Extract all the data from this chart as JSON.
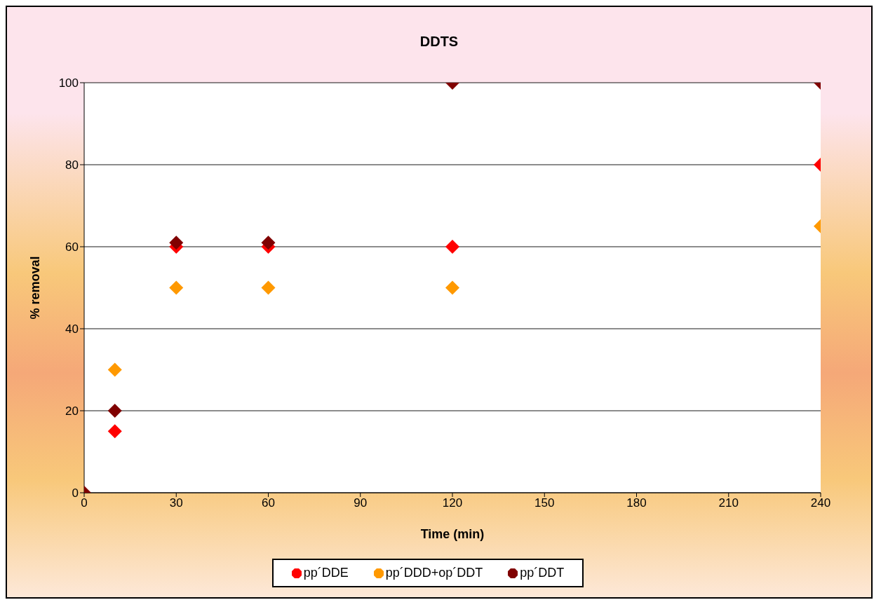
{
  "chart_data": {
    "type": "scatter",
    "title": "DDTS",
    "xlabel": "Time (min)",
    "ylabel": "% removal",
    "x": [
      0,
      10,
      30,
      60,
      120,
      240
    ],
    "series": [
      {
        "name": "pp´DDE",
        "color": "#ff0000",
        "values": [
          null,
          15,
          60,
          60,
          60,
          80
        ]
      },
      {
        "name": "pp´DDD+op´DDT",
        "color": "#ff9900",
        "values": [
          null,
          30,
          50,
          50,
          50,
          65
        ]
      },
      {
        "name": "pp´DDT",
        "color": "#800000",
        "values": [
          0,
          20,
          61,
          61,
          100,
          100
        ]
      }
    ],
    "xlim": [
      0,
      240
    ],
    "xticks": [
      0,
      30,
      60,
      90,
      120,
      150,
      180,
      210,
      240
    ],
    "ylim": [
      0,
      100
    ],
    "yticks": [
      0,
      20,
      40,
      60,
      80,
      100
    ],
    "grid": "y",
    "legend": "bottom",
    "marker": "diamond"
  }
}
